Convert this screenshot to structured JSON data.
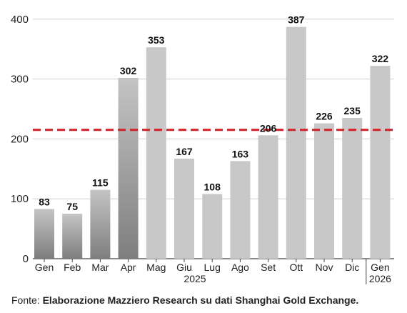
{
  "chart_data": {
    "type": "bar",
    "categories": [
      "Gen",
      "Feb",
      "Mar",
      "Apr",
      "Mag",
      "Giu",
      "Lug",
      "Ago",
      "Set",
      "Ott",
      "Nov",
      "Dic",
      "Gen"
    ],
    "year_labels": [
      "2025",
      "2026"
    ],
    "values": [
      83,
      75,
      115,
      302,
      353,
      167,
      108,
      163,
      206,
      387,
      226,
      235,
      322
    ],
    "value_labels": [
      "83",
      "75",
      "115",
      "302",
      "353",
      "167",
      "108",
      "163",
      "206",
      "387",
      "226",
      "235",
      "322"
    ],
    "yticks": [
      0,
      100,
      200,
      300,
      400
    ],
    "ylim": [
      0,
      420
    ],
    "reference_line": {
      "value": 215,
      "style": "dashed",
      "color": "#d0202a"
    },
    "grid": "horizontal",
    "title": "",
    "xlabel": "",
    "ylabel": "",
    "colors": {
      "bar_dark": "#8a8a8a",
      "bar_light": "#c8c8c8",
      "grid": "#cfcfcf",
      "axis": "#444444"
    }
  },
  "footer": {
    "prefix": "Fonte: ",
    "text": "Elaborazione Mazziero Research su dati Shanghai Gold Exchange."
  }
}
